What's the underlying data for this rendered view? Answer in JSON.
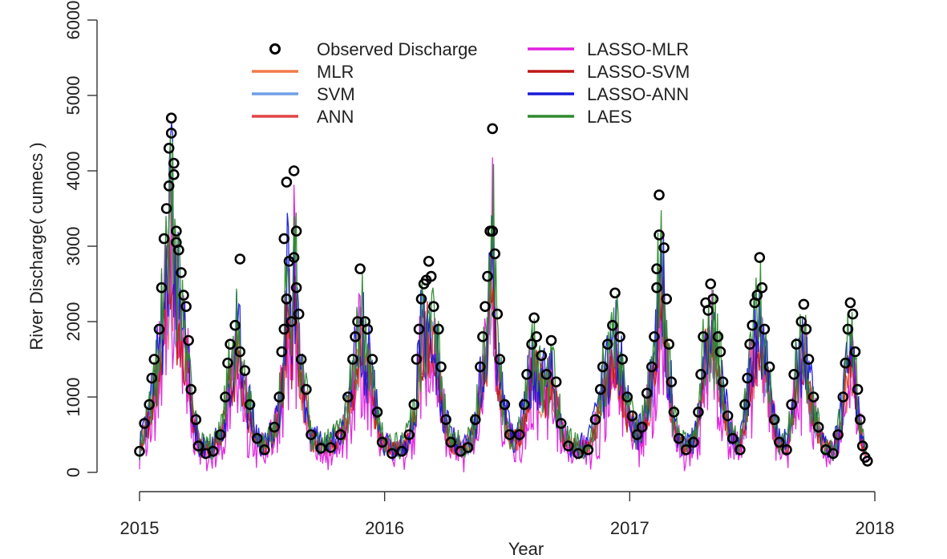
{
  "chart_data": {
    "type": "line",
    "xlabel": "Year",
    "ylabel": "River Discharge( cumecs )",
    "xlim": [
      2015,
      2018
    ],
    "ylim": [
      0,
      6000
    ],
    "x_ticks": [
      2015,
      2016,
      2017,
      2018
    ],
    "x_tick_labels": [
      "2015",
      "2016",
      "2017",
      "2018"
    ],
    "y_ticks": [
      0,
      1000,
      2000,
      3000,
      4000,
      5000,
      6000
    ],
    "y_tick_labels": [
      "0",
      "1000",
      "2000",
      "3000",
      "4000",
      "5000",
      "6000"
    ],
    "grid": false,
    "legend_position": "top",
    "series": [
      {
        "name": "Observed Discharge",
        "style": "circle",
        "color": "#000000"
      },
      {
        "name": "MLR",
        "style": "line",
        "color": "#f07a4a"
      },
      {
        "name": "SVM",
        "style": "line",
        "color": "#6f9fe6"
      },
      {
        "name": "ANN",
        "style": "line",
        "color": "#e14545"
      },
      {
        "name": "LASSO-MLR",
        "style": "line",
        "color": "#e020e0"
      },
      {
        "name": "LASSO-SVM",
        "style": "line",
        "color": "#c01818"
      },
      {
        "name": "LASSO-ANN",
        "style": "line",
        "color": "#1a1ad8"
      },
      {
        "name": "LAES",
        "style": "line",
        "color": "#2e8b2e"
      }
    ],
    "observed_points": [
      [
        2015.0,
        280
      ],
      [
        2015.02,
        650
      ],
      [
        2015.04,
        900
      ],
      [
        2015.05,
        1250
      ],
      [
        2015.06,
        1500
      ],
      [
        2015.08,
        1900
      ],
      [
        2015.09,
        2450
      ],
      [
        2015.1,
        3100
      ],
      [
        2015.11,
        3500
      ],
      [
        2015.12,
        3800
      ],
      [
        2015.12,
        4300
      ],
      [
        2015.13,
        4700
      ],
      [
        2015.13,
        4500
      ],
      [
        2015.14,
        4100
      ],
      [
        2015.14,
        3950
      ],
      [
        2015.15,
        3200
      ],
      [
        2015.15,
        3050
      ],
      [
        2015.16,
        2950
      ],
      [
        2015.17,
        2650
      ],
      [
        2015.18,
        2350
      ],
      [
        2015.19,
        2200
      ],
      [
        2015.2,
        1750
      ],
      [
        2015.21,
        1100
      ],
      [
        2015.23,
        700
      ],
      [
        2015.24,
        350
      ],
      [
        2015.27,
        250
      ],
      [
        2015.3,
        280
      ],
      [
        2015.33,
        500
      ],
      [
        2015.35,
        1000
      ],
      [
        2015.36,
        1450
      ],
      [
        2015.37,
        1700
      ],
      [
        2015.39,
        1950
      ],
      [
        2015.41,
        2830
      ],
      [
        2015.41,
        1600
      ],
      [
        2015.43,
        1350
      ],
      [
        2015.45,
        900
      ],
      [
        2015.48,
        450
      ],
      [
        2015.51,
        300
      ],
      [
        2015.55,
        600
      ],
      [
        2015.57,
        1000
      ],
      [
        2015.58,
        1600
      ],
      [
        2015.59,
        1900
      ],
      [
        2015.6,
        2300
      ],
      [
        2015.59,
        3100
      ],
      [
        2015.6,
        3850
      ],
      [
        2015.61,
        2800
      ],
      [
        2015.62,
        2000
      ],
      [
        2015.63,
        2850
      ],
      [
        2015.63,
        4000
      ],
      [
        2015.64,
        3200
      ],
      [
        2015.64,
        2450
      ],
      [
        2015.65,
        2100
      ],
      [
        2015.66,
        1500
      ],
      [
        2015.68,
        1100
      ],
      [
        2015.7,
        500
      ],
      [
        2015.74,
        320
      ],
      [
        2015.78,
        330
      ],
      [
        2015.82,
        500
      ],
      [
        2015.85,
        1000
      ],
      [
        2015.87,
        1500
      ],
      [
        2015.88,
        1800
      ],
      [
        2015.89,
        2000
      ],
      [
        2015.9,
        2700
      ],
      [
        2015.92,
        2000
      ],
      [
        2015.93,
        1900
      ],
      [
        2015.95,
        1500
      ],
      [
        2015.97,
        800
      ],
      [
        2015.99,
        400
      ],
      [
        2016.03,
        250
      ],
      [
        2016.07,
        280
      ],
      [
        2016.1,
        500
      ],
      [
        2016.12,
        900
      ],
      [
        2016.13,
        1500
      ],
      [
        2016.14,
        1900
      ],
      [
        2016.15,
        2300
      ],
      [
        2016.16,
        2500
      ],
      [
        2016.17,
        2550
      ],
      [
        2016.18,
        2800
      ],
      [
        2016.19,
        2600
      ],
      [
        2016.2,
        2200
      ],
      [
        2016.22,
        1900
      ],
      [
        2016.23,
        1400
      ],
      [
        2016.25,
        700
      ],
      [
        2016.27,
        400
      ],
      [
        2016.31,
        280
      ],
      [
        2016.34,
        330
      ],
      [
        2016.37,
        700
      ],
      [
        2016.39,
        1400
      ],
      [
        2016.4,
        1800
      ],
      [
        2016.41,
        2200
      ],
      [
        2016.42,
        2600
      ],
      [
        2016.43,
        3200
      ],
      [
        2016.44,
        3200
      ],
      [
        2016.44,
        4560
      ],
      [
        2016.45,
        2900
      ],
      [
        2016.46,
        2100
      ],
      [
        2016.47,
        1500
      ],
      [
        2016.49,
        900
      ],
      [
        2016.51,
        500
      ],
      [
        2016.55,
        500
      ],
      [
        2016.57,
        900
      ],
      [
        2016.58,
        1300
      ],
      [
        2016.6,
        1700
      ],
      [
        2016.61,
        2050
      ],
      [
        2016.62,
        1800
      ],
      [
        2016.64,
        1550
      ],
      [
        2016.66,
        1300
      ],
      [
        2016.68,
        1750
      ],
      [
        2016.7,
        1200
      ],
      [
        2016.72,
        650
      ],
      [
        2016.75,
        350
      ],
      [
        2016.79,
        250
      ],
      [
        2016.83,
        300
      ],
      [
        2016.86,
        700
      ],
      [
        2016.88,
        1100
      ],
      [
        2016.89,
        1400
      ],
      [
        2016.91,
        1700
      ],
      [
        2016.93,
        1950
      ],
      [
        2016.94,
        2380
      ],
      [
        2016.96,
        1800
      ],
      [
        2016.97,
        1500
      ],
      [
        2016.99,
        1000
      ],
      [
        2017.01,
        750
      ],
      [
        2017.03,
        500
      ],
      [
        2017.05,
        600
      ],
      [
        2017.07,
        1050
      ],
      [
        2017.09,
        1400
      ],
      [
        2017.1,
        1800
      ],
      [
        2017.11,
        2450
      ],
      [
        2017.11,
        2700
      ],
      [
        2017.12,
        3150
      ],
      [
        2017.12,
        3680
      ],
      [
        2017.14,
        2980
      ],
      [
        2017.15,
        2300
      ],
      [
        2017.16,
        1700
      ],
      [
        2017.17,
        1200
      ],
      [
        2017.18,
        800
      ],
      [
        2017.2,
        450
      ],
      [
        2017.23,
        300
      ],
      [
        2017.26,
        400
      ],
      [
        2017.28,
        800
      ],
      [
        2017.29,
        1300
      ],
      [
        2017.3,
        1800
      ],
      [
        2017.31,
        2250
      ],
      [
        2017.32,
        2150
      ],
      [
        2017.33,
        2500
      ],
      [
        2017.34,
        2300
      ],
      [
        2017.36,
        1800
      ],
      [
        2017.37,
        1600
      ],
      [
        2017.38,
        1200
      ],
      [
        2017.4,
        750
      ],
      [
        2017.42,
        450
      ],
      [
        2017.45,
        300
      ],
      [
        2017.47,
        900
      ],
      [
        2017.48,
        1250
      ],
      [
        2017.49,
        1700
      ],
      [
        2017.5,
        1950
      ],
      [
        2017.51,
        2250
      ],
      [
        2017.52,
        2350
      ],
      [
        2017.53,
        2850
      ],
      [
        2017.54,
        2450
      ],
      [
        2017.55,
        1900
      ],
      [
        2017.57,
        1400
      ],
      [
        2017.59,
        700
      ],
      [
        2017.61,
        400
      ],
      [
        2017.64,
        300
      ],
      [
        2017.66,
        900
      ],
      [
        2017.67,
        1300
      ],
      [
        2017.68,
        1700
      ],
      [
        2017.7,
        2000
      ],
      [
        2017.71,
        2230
      ],
      [
        2017.72,
        1900
      ],
      [
        2017.73,
        1500
      ],
      [
        2017.75,
        1000
      ],
      [
        2017.77,
        600
      ],
      [
        2017.8,
        300
      ],
      [
        2017.83,
        250
      ],
      [
        2017.85,
        500
      ],
      [
        2017.87,
        1000
      ],
      [
        2017.88,
        1450
      ],
      [
        2017.89,
        1900
      ],
      [
        2017.9,
        2250
      ],
      [
        2017.91,
        2100
      ],
      [
        2017.92,
        1600
      ],
      [
        2017.93,
        1100
      ],
      [
        2017.94,
        700
      ],
      [
        2017.95,
        350
      ],
      [
        2017.96,
        200
      ],
      [
        2017.97,
        150
      ]
    ]
  }
}
